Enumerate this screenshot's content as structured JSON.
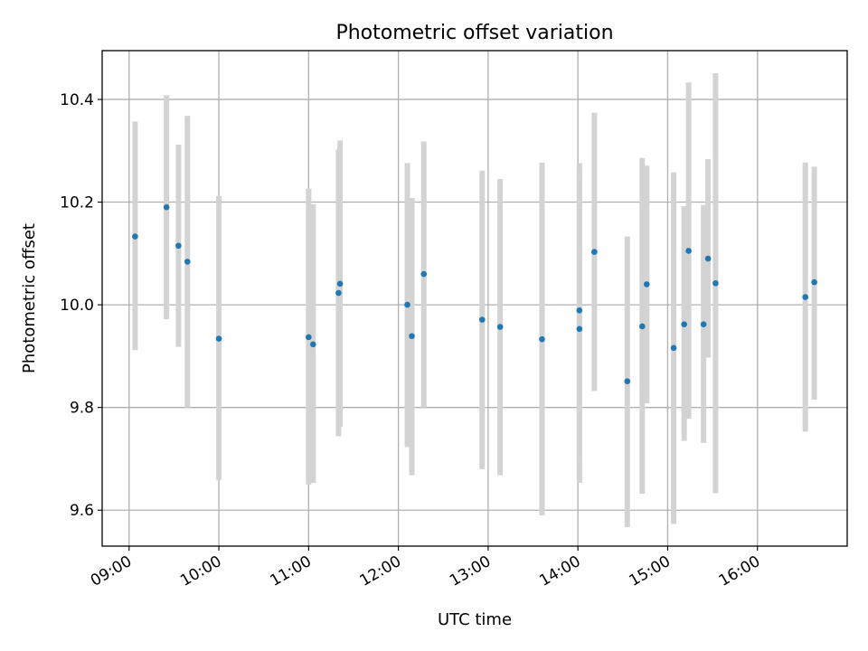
{
  "chart_data": {
    "type": "scatter",
    "title": "Photometric offset variation",
    "xlabel": "UTC time",
    "ylabel": "Photometric offset",
    "xlim": [
      "08:42",
      "17:00"
    ],
    "ylim": [
      9.53,
      10.495
    ],
    "grid": true,
    "x_ticks": [
      "09:00",
      "10:00",
      "11:00",
      "12:00",
      "13:00",
      "14:00",
      "15:00",
      "16:00"
    ],
    "y_ticks": [
      "9.6",
      "9.8",
      "10.0",
      "10.2",
      "10.4"
    ],
    "colors": {
      "marker": "#1f77b4",
      "errorbar": "#d3d3d3",
      "grid": "#b0b0b0"
    },
    "series": [
      {
        "points": [
          {
            "x": "09:04",
            "y": 10.133,
            "ylow": 9.912,
            "yhigh": 10.357
          },
          {
            "x": "09:25",
            "y": 10.19,
            "ylow": 9.972,
            "yhigh": 10.408
          },
          {
            "x": "09:33",
            "y": 10.115,
            "ylow": 9.918,
            "yhigh": 10.312
          },
          {
            "x": "09:39",
            "y": 10.084,
            "ylow": 9.8,
            "yhigh": 10.368
          },
          {
            "x": "10:00",
            "y": 9.934,
            "ylow": 9.658,
            "yhigh": 10.212
          },
          {
            "x": "11:00",
            "y": 9.937,
            "ylow": 9.65,
            "yhigh": 10.226
          },
          {
            "x": "11:03",
            "y": 9.923,
            "ylow": 9.653,
            "yhigh": 10.196
          },
          {
            "x": "11:20",
            "y": 10.023,
            "ylow": 9.744,
            "yhigh": 10.302
          },
          {
            "x": "11:21",
            "y": 10.041,
            "ylow": 9.762,
            "yhigh": 10.32
          },
          {
            "x": "12:06",
            "y": 10.0,
            "ylow": 9.723,
            "yhigh": 10.276
          },
          {
            "x": "12:09",
            "y": 9.939,
            "ylow": 9.668,
            "yhigh": 10.208
          },
          {
            "x": "12:17",
            "y": 10.06,
            "ylow": 9.8,
            "yhigh": 10.318
          },
          {
            "x": "12:56",
            "y": 9.971,
            "ylow": 9.68,
            "yhigh": 10.261
          },
          {
            "x": "13:08",
            "y": 9.957,
            "ylow": 9.668,
            "yhigh": 10.245
          },
          {
            "x": "13:36",
            "y": 9.933,
            "ylow": 9.59,
            "yhigh": 10.277
          },
          {
            "x": "14:01",
            "y": 9.989,
            "ylow": 9.7,
            "yhigh": 10.276
          },
          {
            "x": "14:01",
            "y": 9.953,
            "ylow": 9.653,
            "yhigh": 10.251
          },
          {
            "x": "14:11",
            "y": 10.103,
            "ylow": 9.832,
            "yhigh": 10.374
          },
          {
            "x": "14:33",
            "y": 9.851,
            "ylow": 9.567,
            "yhigh": 10.133
          },
          {
            "x": "14:43",
            "y": 9.958,
            "ylow": 9.632,
            "yhigh": 10.286
          },
          {
            "x": "14:46",
            "y": 10.04,
            "ylow": 9.808,
            "yhigh": 10.271
          },
          {
            "x": "15:04",
            "y": 9.916,
            "ylow": 9.573,
            "yhigh": 10.258
          },
          {
            "x": "15:11",
            "y": 9.962,
            "ylow": 9.735,
            "yhigh": 10.192
          },
          {
            "x": "15:14",
            "y": 10.105,
            "ylow": 9.778,
            "yhigh": 10.433
          },
          {
            "x": "15:24",
            "y": 9.962,
            "ylow": 9.731,
            "yhigh": 10.194
          },
          {
            "x": "15:27",
            "y": 10.09,
            "ylow": 9.897,
            "yhigh": 10.284
          },
          {
            "x": "15:32",
            "y": 10.042,
            "ylow": 9.633,
            "yhigh": 10.451
          },
          {
            "x": "16:32",
            "y": 10.015,
            "ylow": 9.753,
            "yhigh": 10.277
          },
          {
            "x": "16:38",
            "y": 10.044,
            "ylow": 9.815,
            "yhigh": 10.269
          }
        ]
      }
    ]
  }
}
